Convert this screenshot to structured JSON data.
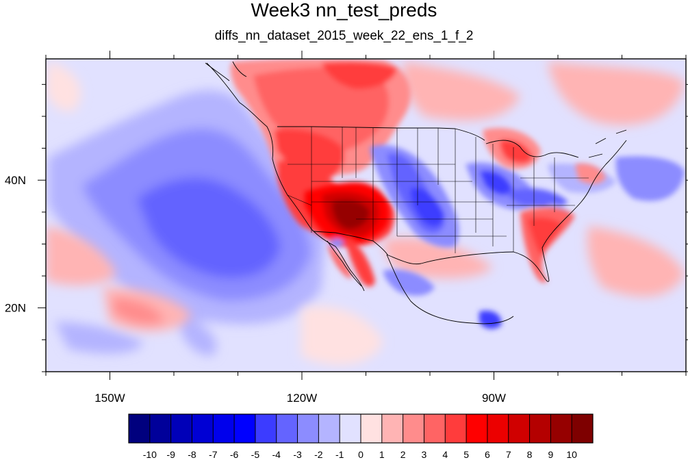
{
  "title": "Week3 nn_test_preds",
  "subtitle": "diffs_nn_dataset_2015_week_22_ens_1_f_2",
  "map": {
    "region": "North-East Pacific and North America",
    "lon_range": [
      -160,
      -60
    ],
    "lat_range": [
      10,
      59
    ],
    "lon_ticks": [
      {
        "value": -150,
        "label": "150W"
      },
      {
        "value": -120,
        "label": "120W"
      },
      {
        "value": -90,
        "label": "90W"
      }
    ],
    "lat_ticks": [
      {
        "value": 40,
        "label": "40N"
      },
      {
        "value": 20,
        "label": "20N"
      }
    ],
    "boundaries": "coastlines, country and US state borders"
  },
  "colorbar": {
    "labels": [
      "-10",
      "-9",
      "-8",
      "-7",
      "-6",
      "-5",
      "-4",
      "-3",
      "-2",
      "-1",
      "0",
      "1",
      "2",
      "3",
      "4",
      "5",
      "6",
      "7",
      "8",
      "9",
      "10"
    ],
    "colors": [
      "#00007e",
      "#00009a",
      "#0000b8",
      "#0000d4",
      "#0000ec",
      "#0000ff",
      "#3c3cff",
      "#6464ff",
      "#8c8cff",
      "#b4b4ff",
      "#e1e1ff",
      "#ffe1e1",
      "#ffb4b4",
      "#ff8c8c",
      "#ff6464",
      "#ff3c3c",
      "#ff0000",
      "#ec0000",
      "#d00000",
      "#b40000",
      "#960000",
      "#7e0000"
    ]
  },
  "icons": {
    "overlay": "boundary-lines"
  }
}
